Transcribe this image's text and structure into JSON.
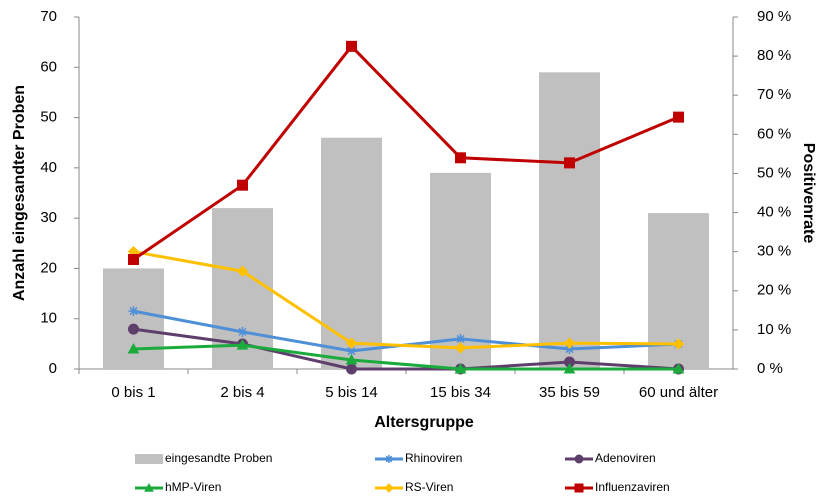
{
  "chart_data": {
    "type": "bar-line",
    "x_label": "Altersgruppe",
    "y_label": "Anzahl eingesandter Proben",
    "y2_label": "Positivenrate",
    "categories": [
      "0 bis 1",
      "2 bis 4",
      "5 bis 14",
      "15 bis 34",
      "35 bis 59",
      "60 und älter"
    ],
    "ylim": [
      0,
      70
    ],
    "yticks": [
      0,
      10,
      20,
      30,
      40,
      50,
      60,
      70
    ],
    "y2lim": [
      0,
      90
    ],
    "y2ticks": [
      {
        "value": 0,
        "label": "0 %"
      },
      {
        "value": 10,
        "label": "10 %"
      },
      {
        "value": 20,
        "label": "20 %"
      },
      {
        "value": 30,
        "label": "30 %"
      },
      {
        "value": 40,
        "label": "40 %"
      },
      {
        "value": 50,
        "label": "50 %"
      },
      {
        "value": 60,
        "label": "60 %"
      },
      {
        "value": 70,
        "label": "70 %"
      },
      {
        "value": 80,
        "label": "80 %"
      },
      {
        "value": 90,
        "label": "90 %"
      }
    ],
    "series": [
      {
        "name": "eingesandte Proben",
        "kind": "bar",
        "color": "#c0c0c0",
        "values": [
          20,
          32,
          46,
          39,
          59,
          31
        ]
      },
      {
        "name": "Rhinoviren",
        "kind": "line",
        "axis": "y2",
        "marker": "star",
        "color": "#4f8fd6",
        "values": [
          14.8,
          9.5,
          4.6,
          7.7,
          5.1,
          6.4
        ]
      },
      {
        "name": "Adenoviren",
        "kind": "line",
        "axis": "y2",
        "marker": "circle",
        "color": "#5e3f6b",
        "values": [
          10.2,
          6.4,
          0,
          0,
          1.8,
          0
        ]
      },
      {
        "name": "hMP-Viren",
        "kind": "line",
        "axis": "y2",
        "marker": "triangle",
        "color": "#1aab3c",
        "values": [
          5.1,
          6.1,
          2.3,
          0,
          0,
          0
        ]
      },
      {
        "name": "RS-Viren",
        "kind": "line",
        "axis": "y2",
        "marker": "diamond",
        "color": "#ffc000",
        "values": [
          30,
          25,
          6.6,
          5.4,
          6.6,
          6.4
        ]
      },
      {
        "name": "Influenzaviren",
        "kind": "line",
        "axis": "y2",
        "marker": "square",
        "color": "#c00000",
        "values": [
          28,
          47,
          82.5,
          54,
          52.7,
          64.4
        ]
      }
    ]
  }
}
